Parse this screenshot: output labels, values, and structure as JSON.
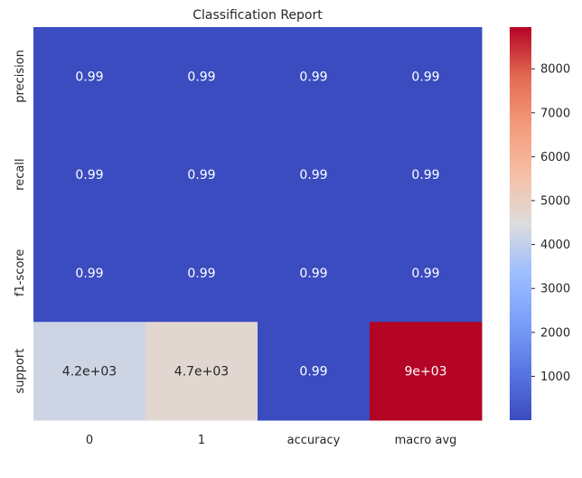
{
  "chart_data": {
    "type": "heatmap",
    "title": "Classification Report",
    "colormap": "coolwarm",
    "x_labels": [
      "0",
      "1",
      "accuracy",
      "macro avg"
    ],
    "y_labels": [
      "precision",
      "recall",
      "f1-score",
      "support"
    ],
    "values": [
      [
        0.99,
        0.99,
        0.99,
        0.99
      ],
      [
        0.99,
        0.99,
        0.99,
        0.99
      ],
      [
        0.99,
        0.99,
        0.99,
        0.99
      ],
      [
        4200,
        4700,
        0.99,
        9000
      ]
    ],
    "annotations": [
      [
        "0.99",
        "0.99",
        "0.99",
        "0.99"
      ],
      [
        "0.99",
        "0.99",
        "0.99",
        "0.99"
      ],
      [
        "0.99",
        "0.99",
        "0.99",
        "0.99"
      ],
      [
        "4.2e+03",
        "4.7e+03",
        "0.99",
        "9e+03"
      ]
    ],
    "colorbar": {
      "min": 0.99,
      "max": 8950,
      "ticks": [
        1000,
        2000,
        3000,
        4000,
        5000,
        6000,
        7000,
        8000
      ],
      "tick_labels": [
        "1000",
        "2000",
        "3000",
        "4000",
        "5000",
        "6000",
        "7000",
        "8000"
      ]
    },
    "colors": {
      "text_on_dark": "#ffffff",
      "text_on_light": "#262626"
    }
  }
}
